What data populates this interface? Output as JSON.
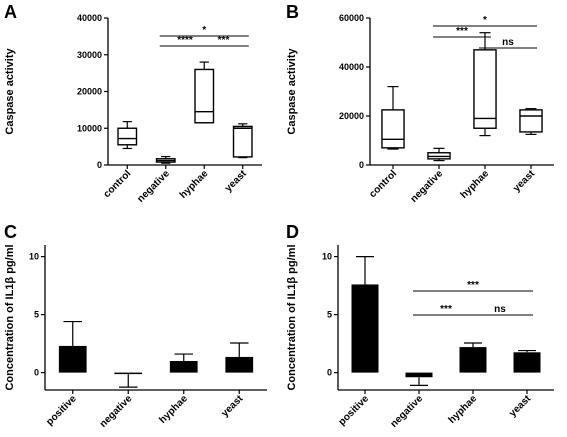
{
  "chart_data": [
    {
      "panel": "A",
      "type": "box",
      "ylabel": "Caspase activity",
      "ylim": [
        0,
        40000
      ],
      "yticks": [
        0,
        10000,
        20000,
        30000,
        40000
      ],
      "ytick_labels": [
        "0",
        "10000",
        "20000",
        "30000",
        "40000"
      ],
      "categories": [
        "control",
        "negative",
        "hyphae",
        "yeast"
      ],
      "boxes": [
        {
          "min": 4500,
          "q1": 5500,
          "median": 7200,
          "q3": 10000,
          "max": 11800
        },
        {
          "min": 500,
          "q1": 800,
          "median": 1200,
          "q3": 1700,
          "max": 2300
        },
        {
          "min": 11500,
          "q1": 11500,
          "median": 14500,
          "q3": 26000,
          "max": 28000
        },
        {
          "min": 2000,
          "q1": 2200,
          "median": 10000,
          "q3": 10500,
          "max": 11200
        }
      ],
      "comparisons": [
        {
          "from": 1,
          "to": 3,
          "label": "*",
          "level": 2
        },
        {
          "from": 1,
          "to": 2,
          "label": "****",
          "level": 1
        },
        {
          "from": 2,
          "to": 3,
          "label": "***",
          "level": 1
        }
      ]
    },
    {
      "panel": "B",
      "type": "box",
      "ylabel": "Caspase activity",
      "ylim": [
        0,
        60000
      ],
      "yticks": [
        0,
        20000,
        40000,
        60000
      ],
      "ytick_labels": [
        "0",
        "20000",
        "40000",
        "60000"
      ],
      "categories": [
        "control",
        "negative",
        "hyphae",
        "yeast"
      ],
      "boxes": [
        {
          "min": 6500,
          "q1": 7000,
          "median": 10500,
          "q3": 22500,
          "max": 32000
        },
        {
          "min": 1800,
          "q1": 2500,
          "median": 3500,
          "q3": 5000,
          "max": 6800
        },
        {
          "min": 12000,
          "q1": 15000,
          "median": 19000,
          "q3": 47000,
          "max": 54000
        },
        {
          "min": 12500,
          "q1": 13500,
          "median": 20000,
          "q3": 22500,
          "max": 23000
        }
      ],
      "comparisons": [
        {
          "from": 1,
          "to": 3,
          "label": "*",
          "level": 3
        },
        {
          "from": 1,
          "to": 2,
          "label": "***",
          "level": 2
        },
        {
          "from": 2,
          "to": 3,
          "label": "ns",
          "level": 1
        }
      ]
    },
    {
      "panel": "C",
      "type": "bar",
      "ylabel": "Concentration of IL1β pg/ml",
      "ylim": [
        -1.5,
        11
      ],
      "yticks": [
        0,
        5,
        10
      ],
      "ytick_labels": [
        "0",
        "5",
        "10"
      ],
      "categories": [
        "positive",
        "negative",
        "hyphae",
        "yeast"
      ],
      "values": [
        2.3,
        -0.05,
        1.0,
        1.35
      ],
      "errors": [
        2.1,
        1.2,
        0.6,
        1.2
      ],
      "comparisons": []
    },
    {
      "panel": "D",
      "type": "bar",
      "ylabel": "Concentration of IL1β pg/ml",
      "ylim": [
        -1.5,
        11
      ],
      "yticks": [
        0,
        5,
        10
      ],
      "ytick_labels": [
        "0",
        "5",
        "10"
      ],
      "categories": [
        "positive",
        "negative",
        "hyphae",
        "yeast"
      ],
      "values": [
        7.6,
        -0.4,
        2.2,
        1.75
      ],
      "errors": [
        2.4,
        0.7,
        0.35,
        0.15
      ],
      "comparisons": [
        {
          "from": 1,
          "to": 3,
          "label": "***",
          "level": 2
        },
        {
          "from": 1,
          "to": 2,
          "label": "***",
          "level": 1
        },
        {
          "from": 2,
          "to": 3,
          "label": "ns",
          "level": 1
        }
      ]
    }
  ]
}
